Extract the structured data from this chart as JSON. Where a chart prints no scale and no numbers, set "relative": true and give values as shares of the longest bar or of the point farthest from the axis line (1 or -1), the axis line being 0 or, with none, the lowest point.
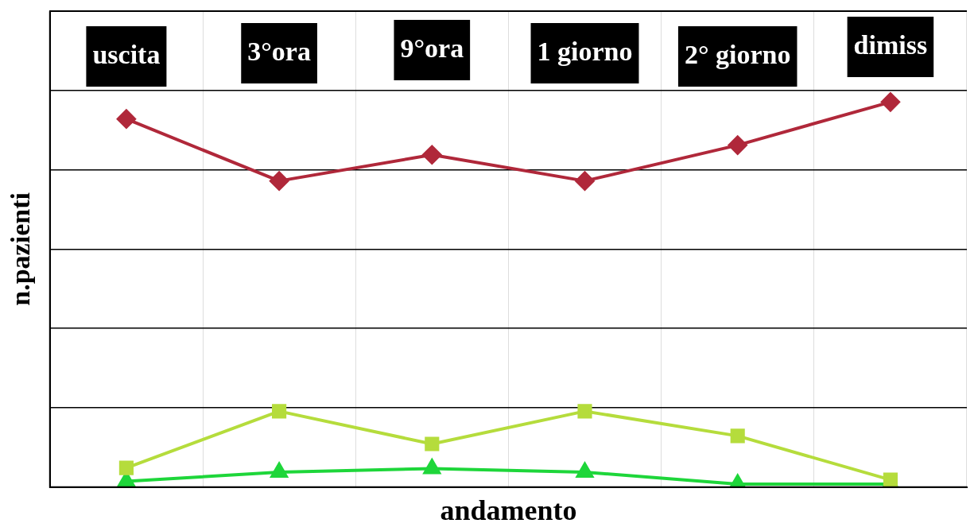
{
  "chart_data": {
    "type": "line",
    "xlabel": "andamento",
    "ylabel": "n.pazienti",
    "relative": true,
    "grid": true,
    "legend": false,
    "tick_labels": "x",
    "categories": [
      "uscita",
      "3°ora",
      "9°ora",
      "1 giorno",
      "2° giorno",
      "dimiss"
    ],
    "series": [
      {
        "color": "#b0283a",
        "marker": "diamond",
        "values": [
          0.956,
          0.795,
          0.863,
          0.795,
          0.888,
          1
        ]
      },
      {
        "color": "#b5dc3c",
        "marker": "square",
        "values": [
          0.05,
          0.197,
          0.112,
          0.197,
          0.133,
          0.019
        ]
      },
      {
        "color": "#1ed63a",
        "marker": "triangle",
        "values": [
          0.015,
          0.039,
          0.048,
          0.039,
          0.008,
          0.008
        ]
      }
    ]
  }
}
